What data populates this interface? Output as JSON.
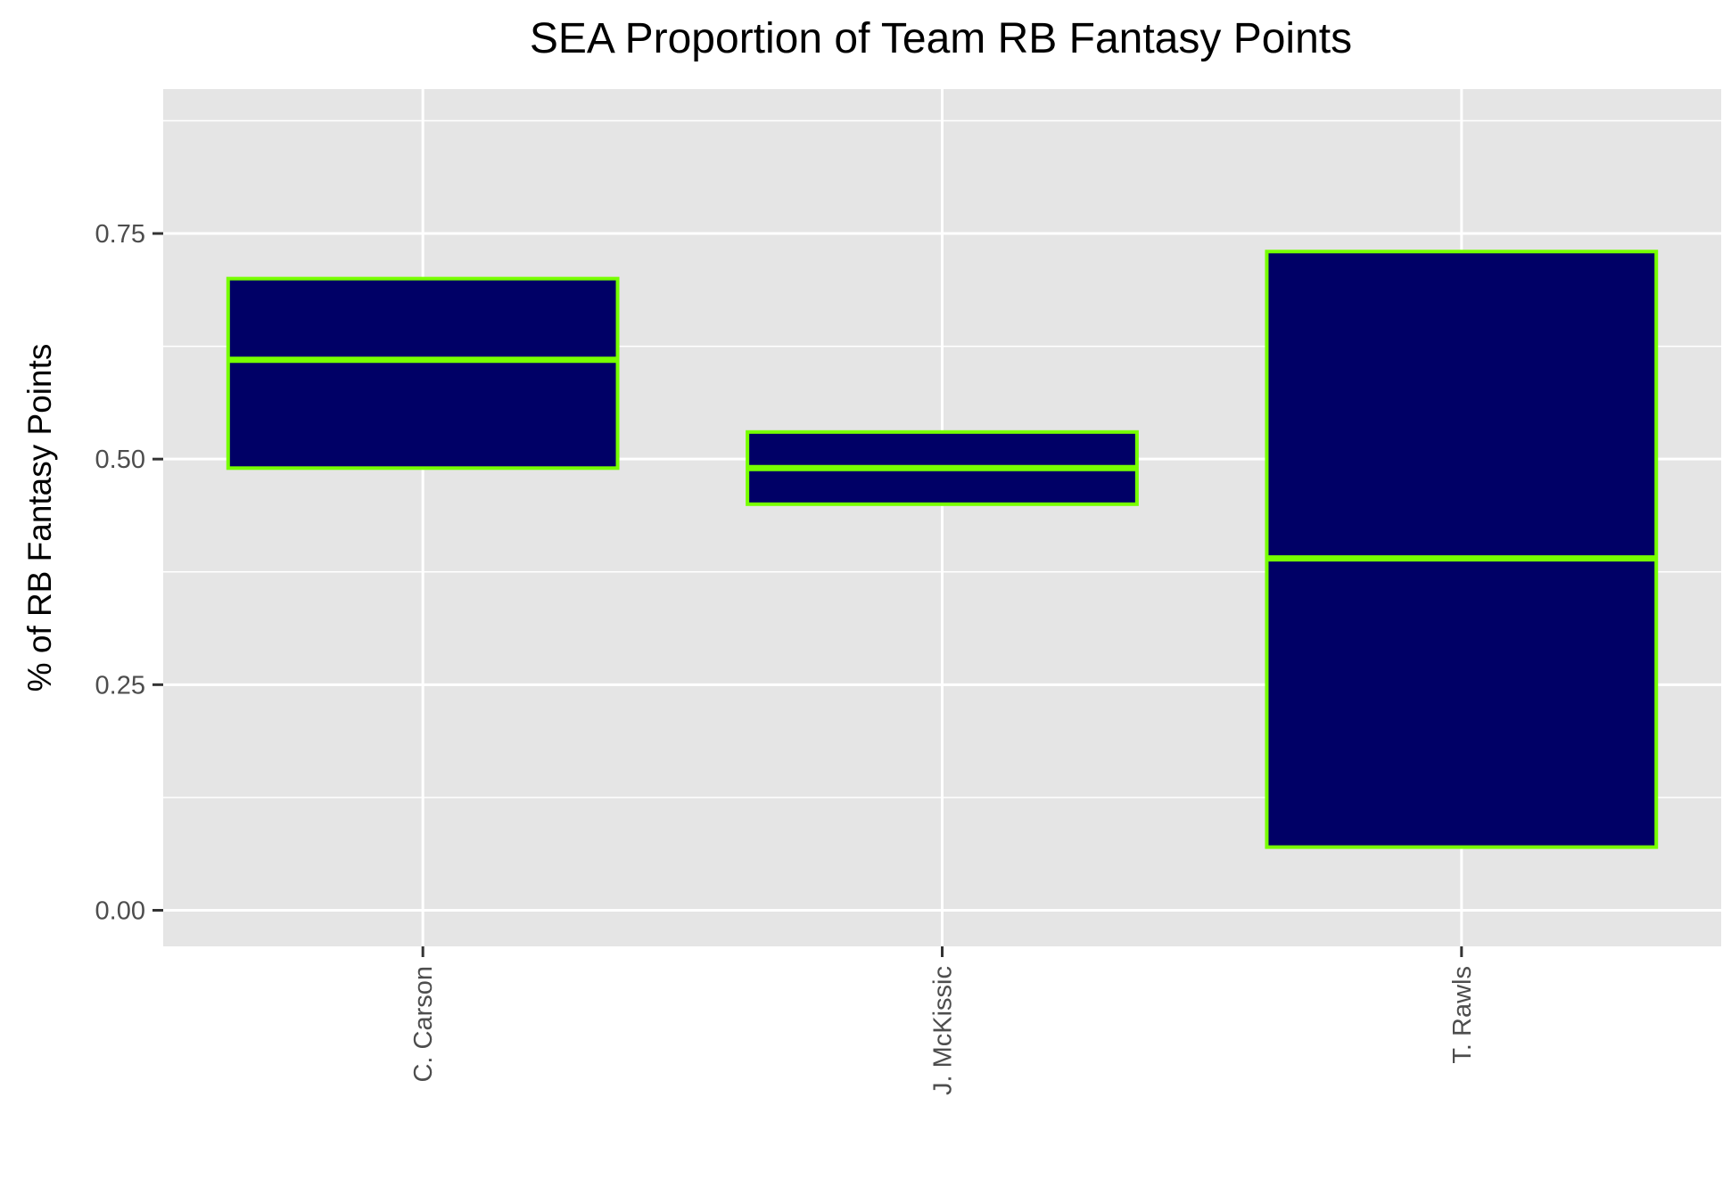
{
  "chart_data": {
    "type": "boxplot",
    "title": "SEA Proportion of Team RB Fantasy Points",
    "xlabel": "",
    "ylabel": "% of RB Fantasy Points",
    "categories": [
      "C. Carson",
      "J. McKissic",
      "T. Rawls"
    ],
    "boxes": [
      {
        "category": "C. Carson",
        "lower": 0.49,
        "median": 0.61,
        "upper": 0.7
      },
      {
        "category": "J. McKissic",
        "lower": 0.45,
        "median": 0.49,
        "upper": 0.53
      },
      {
        "category": "T. Rawls",
        "lower": 0.07,
        "median": 0.39,
        "upper": 0.73
      }
    ],
    "ylim": [
      -0.04,
      0.91
    ],
    "yticks": [
      0.0,
      0.25,
      0.5,
      0.75
    ],
    "ytick_labels": [
      "0.00",
      "0.25",
      "0.50",
      "0.75"
    ],
    "grid": true,
    "colors": {
      "panel_background": "#e5e5e5",
      "grid": "#ffffff",
      "box_fill": "#000066",
      "box_outline": "#77ff00",
      "tick_text": "#4d4d4d",
      "tick_mark": "#333333"
    }
  }
}
